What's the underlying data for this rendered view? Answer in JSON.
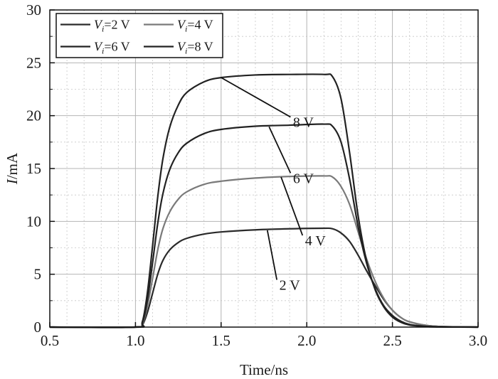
{
  "chart_data": {
    "type": "line",
    "xlabel": "Time/ns",
    "ylabel": "I/mA",
    "xlim": [
      0.5,
      3.0
    ],
    "ylim": [
      0,
      30
    ],
    "xticks": [
      "0.5",
      "1.0",
      "1.5",
      "2.0",
      "2.5",
      "3.0"
    ],
    "yticks": [
      "0",
      "5",
      "10",
      "15",
      "20",
      "25",
      "30"
    ],
    "grid": true,
    "legend_position": "top-left",
    "series": [
      {
        "name": "Vi=2 V",
        "color": "#2a2a2a",
        "x": [
          0.5,
          1.0,
          1.04,
          1.07,
          1.1,
          1.13,
          1.16,
          1.2,
          1.25,
          1.3,
          1.4,
          1.5,
          1.7,
          1.9,
          2.1,
          2.15,
          2.2,
          2.25,
          2.3,
          2.35,
          2.4,
          2.45,
          2.5,
          2.55,
          2.6,
          2.7,
          2.8,
          3.0
        ],
        "y": [
          0,
          0,
          0.2,
          1.4,
          3.2,
          5.0,
          6.3,
          7.3,
          8.0,
          8.4,
          8.8,
          9.0,
          9.2,
          9.3,
          9.35,
          9.3,
          8.9,
          8.1,
          6.8,
          5.3,
          3.9,
          2.6,
          1.6,
          0.9,
          0.5,
          0.15,
          0.04,
          0
        ]
      },
      {
        "name": "Vi=4 V",
        "color": "#7a7a7a",
        "x": [
          0.5,
          1.0,
          1.04,
          1.07,
          1.1,
          1.13,
          1.16,
          1.2,
          1.25,
          1.3,
          1.4,
          1.5,
          1.7,
          1.9,
          2.1,
          2.15,
          2.2,
          2.25,
          2.3,
          2.35,
          2.4,
          2.45,
          2.5,
          2.55,
          2.6,
          2.7,
          2.8,
          3.0
        ],
        "y": [
          0,
          0,
          0.3,
          2.0,
          4.6,
          7.3,
          9.3,
          10.9,
          12.1,
          12.8,
          13.5,
          13.8,
          14.1,
          14.25,
          14.3,
          14.2,
          13.3,
          11.6,
          9.0,
          6.4,
          4.3,
          2.7,
          1.6,
          0.9,
          0.5,
          0.15,
          0.04,
          0
        ]
      },
      {
        "name": "Vi=6 V",
        "color": "#222222",
        "x": [
          0.5,
          1.0,
          1.04,
          1.07,
          1.1,
          1.13,
          1.16,
          1.2,
          1.25,
          1.3,
          1.4,
          1.5,
          1.7,
          1.9,
          2.1,
          2.15,
          2.2,
          2.25,
          2.3,
          2.35,
          2.4,
          2.45,
          2.5,
          2.55,
          2.6,
          2.7,
          2.8,
          3.0
        ],
        "y": [
          0,
          0,
          0.4,
          2.6,
          6.1,
          9.8,
          12.6,
          14.9,
          16.5,
          17.4,
          18.3,
          18.7,
          19.0,
          19.1,
          19.2,
          19.0,
          17.5,
          14.0,
          9.5,
          6.0,
          3.6,
          2.0,
          1.1,
          0.55,
          0.25,
          0.07,
          0.02,
          0
        ]
      },
      {
        "name": "Vi=8 V",
        "color": "#222222",
        "x": [
          0.5,
          1.0,
          1.04,
          1.07,
          1.1,
          1.13,
          1.16,
          1.2,
          1.25,
          1.3,
          1.4,
          1.5,
          1.7,
          1.9,
          2.1,
          2.15,
          2.2,
          2.25,
          2.3,
          2.35,
          2.4,
          2.45,
          2.5,
          2.55,
          2.6,
          2.7,
          2.8,
          3.0
        ],
        "y": [
          0,
          0,
          0.5,
          3.3,
          7.7,
          12.3,
          15.9,
          18.9,
          21.0,
          22.2,
          23.2,
          23.6,
          23.85,
          23.9,
          23.9,
          23.7,
          21.6,
          16.5,
          10.5,
          6.2,
          3.5,
          1.9,
          0.95,
          0.45,
          0.2,
          0.05,
          0.01,
          0
        ]
      }
    ],
    "annotations": [
      {
        "text": "8 V",
        "x": 1.98,
        "y": 19.2
      },
      {
        "text": "6 V",
        "x": 1.98,
        "y": 13.9
      },
      {
        "text": "4 V",
        "x": 2.05,
        "y": 8.0
      },
      {
        "text": "2 V",
        "x": 1.9,
        "y": 3.8
      }
    ],
    "legend": {
      "rows": [
        [
          {
            "v": "V",
            "sub": "i",
            "rest": "=2 V"
          },
          {
            "v": "V",
            "sub": "i",
            "rest": "=4 V"
          }
        ],
        [
          {
            "v": "V",
            "sub": "i",
            "rest": "=6 V"
          },
          {
            "v": "V",
            "sub": "i",
            "rest": "=8 V"
          }
        ]
      ]
    }
  }
}
